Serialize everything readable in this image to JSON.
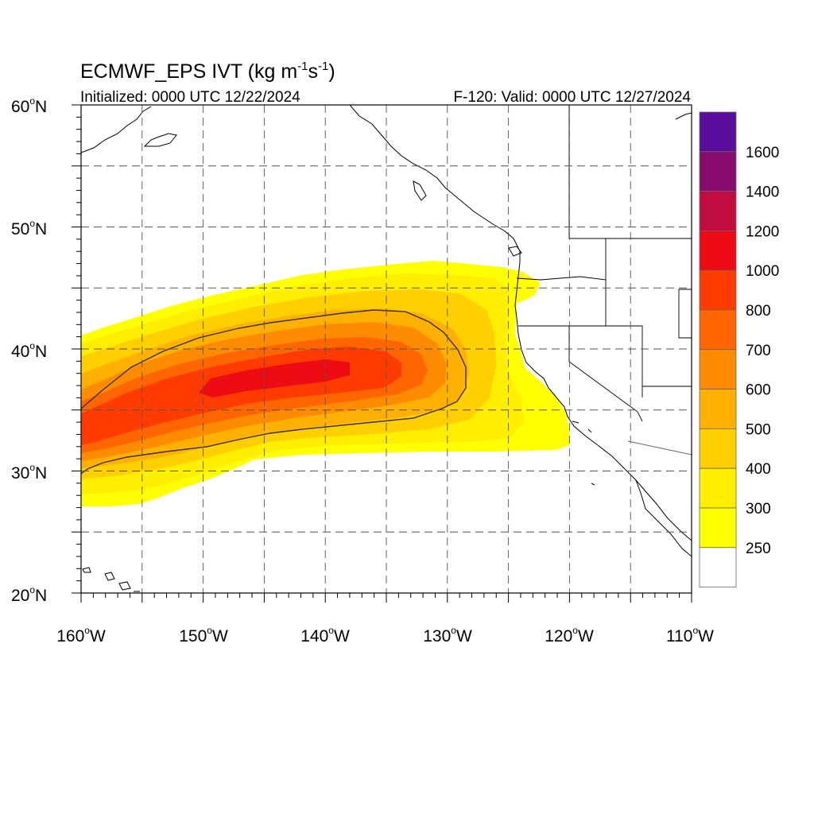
{
  "title": {
    "main": "ECMWF_EPS IVT (kg m",
    "unit_exp1": "-1",
    "unit_mid": "s",
    "unit_exp2": "-1",
    "unit_close": ")"
  },
  "subtitle": {
    "left": "Initialized: 0000 UTC 12/22/2024",
    "right": "F-120: Valid: 0000 UTC 12/27/2024"
  },
  "axes": {
    "lat_labels": [
      "60",
      "50",
      "40",
      "30",
      "20"
    ],
    "lat_suffix": "N",
    "lon_labels": [
      "160",
      "150",
      "140",
      "130",
      "120",
      "110"
    ],
    "lon_suffix": "W",
    "degree_symbol": "o",
    "lat_range": [
      20,
      60
    ],
    "lon_range": [
      -160,
      -110
    ]
  },
  "legend": {
    "labels": [
      "1600",
      "1400",
      "1200",
      "1000",
      "800",
      "700",
      "600",
      "500",
      "400",
      "300",
      "250"
    ],
    "colors": [
      "#5a0d9a",
      "#880c6e",
      "#c00c3e",
      "#ee0c14",
      "#ff3b00",
      "#ff6600",
      "#ff8c00",
      "#ffb000",
      "#ffcf00",
      "#ffee00",
      "#ffff00",
      "#ffffff"
    ]
  },
  "colors": {
    "ivt_250": "#ffff00",
    "ivt_300": "#ffee00",
    "ivt_400": "#ffcf00",
    "ivt_500": "#ffb000",
    "ivt_600": "#ff8c00",
    "ivt_700": "#ff6600",
    "ivt_800": "#ff3b00",
    "ivt_1000": "#ee0c14"
  }
}
